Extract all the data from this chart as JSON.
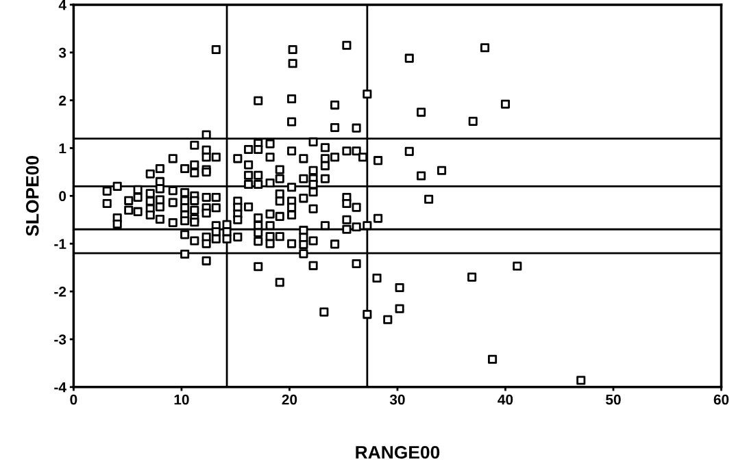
{
  "chart_data": {
    "type": "scatter",
    "xlabel": "RANGE00",
    "ylabel": "SLOPE00",
    "xlim": [
      0,
      60
    ],
    "xticks": [
      0,
      10,
      20,
      30,
      40,
      50,
      60
    ],
    "ylim": [
      -4,
      4
    ],
    "yticks": [
      -4,
      -3,
      -2,
      -1,
      0,
      1,
      2,
      3,
      4
    ],
    "grid": false,
    "marker": "square",
    "ref_lines": [
      {
        "axis": "x",
        "value": 14.2,
        "color": "#000000"
      },
      {
        "axis": "x",
        "value": 27.2,
        "color": "#000000"
      },
      {
        "axis": "y",
        "value": 1.2,
        "color": "#000000"
      },
      {
        "axis": "y",
        "value": 0.2,
        "color": "#000000"
      },
      {
        "axis": "y",
        "value": -0.7,
        "color": "#000000"
      },
      {
        "axis": "y",
        "value": -1.2,
        "color": "#000000"
      }
    ],
    "series": [
      {
        "color": "#000000",
        "x": [
          31.1,
          38.1,
          32.2,
          40.0,
          37.0,
          28.2,
          31.1,
          32.2,
          34.1,
          32.9,
          28.2,
          28.1,
          30.2,
          30.2,
          29.1,
          36.9,
          41.1,
          38.8,
          47.0,
          20.3,
          20.3,
          25.3,
          17.1,
          20.2,
          24.2,
          20.2,
          24.2,
          26.2,
          27.2,
          22.2,
          17.1,
          17.1,
          18.2,
          16.2,
          15.2,
          18.2,
          20.2,
          21.3,
          23.3,
          23.3,
          23.3,
          24.2,
          25.3,
          26.2,
          26.8,
          16.2,
          16.2,
          16.2,
          17.1,
          17.1,
          18.2,
          19.1,
          19.1,
          20.2,
          21.3,
          22.2,
          22.2,
          22.2,
          23.3,
          22.2,
          15.2,
          15.2,
          15.2,
          15.2,
          16.2,
          17.1,
          17.1,
          17.1,
          17.1,
          18.2,
          18.2,
          19.1,
          19.1,
          19.1,
          18.2,
          18.2,
          19.1,
          20.2,
          20.2,
          20.2,
          20.2,
          21.3,
          21.3,
          21.3,
          21.3,
          21.3,
          22.2,
          22.2,
          23.3,
          24.2,
          25.3,
          25.3,
          26.2,
          25.3,
          25.3,
          26.2,
          27.2,
          15.2,
          14.2,
          14.2,
          14.2,
          17.1,
          22.2,
          26.2,
          19.1,
          23.2,
          27.2,
          13.2,
          12.3,
          11.2,
          12.3,
          12.3,
          13.2,
          9.2,
          8.0,
          7.1,
          10.3,
          11.2,
          11.2,
          12.3,
          12.3,
          8.0,
          8.0,
          4.05,
          3.1,
          3.1,
          5.95,
          5.95,
          7.1,
          7.1,
          7.1,
          7.1,
          8.0,
          8.0,
          8.0,
          9.2,
          9.2,
          5.1,
          5.1,
          5.95,
          4.05,
          4.05,
          9.2,
          10.3,
          10.3,
          10.3,
          10.3,
          10.3,
          11.2,
          11.2,
          11.2,
          11.2,
          11.2,
          12.3,
          12.3,
          13.2,
          13.2,
          12.3,
          10.3,
          11.2,
          12.3,
          12.3,
          13.2,
          13.2,
          13.2,
          10.3,
          12.3
        ],
        "values": [
          2.88,
          3.1,
          1.75,
          1.92,
          1.56,
          0.74,
          0.93,
          0.42,
          0.53,
          -0.07,
          -0.47,
          -1.72,
          -1.92,
          -2.36,
          -2.59,
          -1.7,
          -1.47,
          -3.42,
          -3.86,
          3.06,
          2.77,
          3.15,
          1.99,
          2.03,
          1.9,
          1.55,
          1.43,
          1.42,
          2.13,
          1.13,
          1.1,
          0.97,
          1.09,
          0.97,
          0.78,
          0.81,
          0.94,
          0.78,
          1.01,
          0.78,
          0.63,
          0.81,
          0.94,
          0.94,
          0.81,
          0.65,
          0.43,
          0.24,
          0.43,
          0.24,
          0.27,
          0.55,
          0.36,
          0.18,
          0.36,
          0.53,
          0.36,
          0.24,
          0.36,
          0.08,
          -0.11,
          -0.24,
          -0.38,
          -0.5,
          -0.23,
          -0.46,
          -0.62,
          -0.77,
          -0.95,
          -0.38,
          -0.62,
          0.04,
          -0.11,
          -0.43,
          -0.85,
          -1.0,
          -0.85,
          -0.11,
          -0.24,
          -0.4,
          -1.0,
          -0.05,
          -0.72,
          -0.87,
          -1.02,
          -1.21,
          -0.27,
          -0.94,
          -0.62,
          -1.01,
          -0.03,
          -0.16,
          -0.24,
          -0.5,
          -0.7,
          -0.65,
          -0.62,
          -0.86,
          -0.6,
          -0.75,
          -0.9,
          -1.48,
          -1.46,
          -1.42,
          -1.81,
          -2.43,
          -2.48,
          3.06,
          1.28,
          1.06,
          0.96,
          0.81,
          0.81,
          0.78,
          0.57,
          0.46,
          0.57,
          0.65,
          0.48,
          0.55,
          0.5,
          0.3,
          0.15,
          0.2,
          0.1,
          -0.16,
          0.13,
          -0.03,
          0.05,
          -0.11,
          -0.27,
          -0.4,
          -0.08,
          -0.23,
          -0.49,
          0.11,
          -0.14,
          -0.1,
          -0.3,
          -0.33,
          -0.46,
          -0.59,
          -0.56,
          0.07,
          -0.1,
          -0.25,
          -0.4,
          -0.52,
          0.0,
          -0.1,
          -0.3,
          -0.48,
          -0.55,
          -0.03,
          -0.25,
          -0.03,
          -0.25,
          -0.36,
          -0.81,
          -0.94,
          -0.86,
          -1.0,
          -0.62,
          -0.75,
          -0.9,
          -1.22,
          -1.36
        ]
      }
    ]
  }
}
